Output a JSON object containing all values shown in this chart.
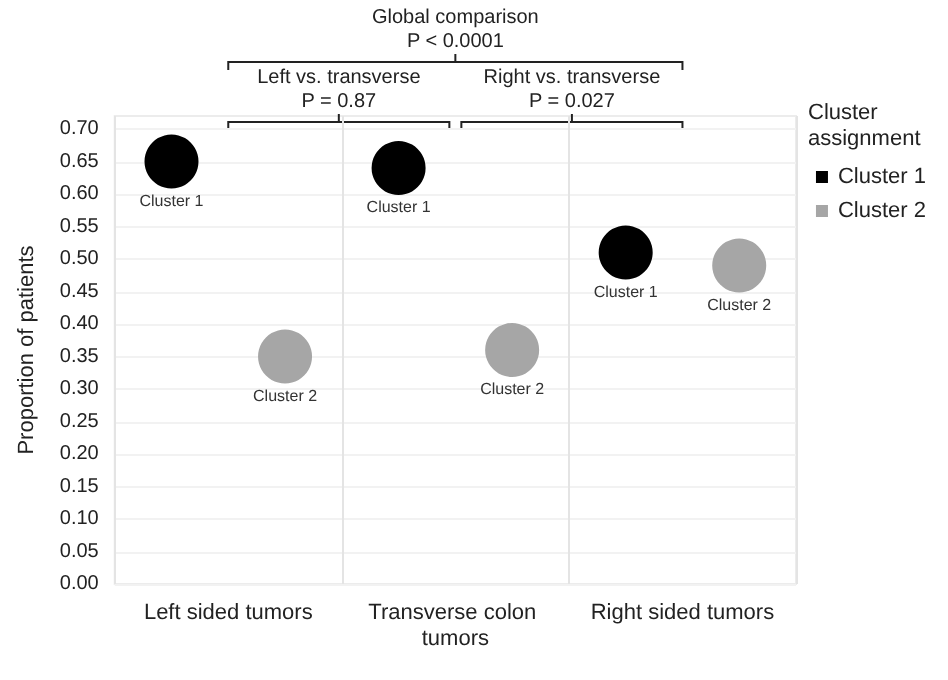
{
  "chart_data": {
    "type": "scatter",
    "ylabel": "Proportion of patients",
    "legend_title": "Cluster assignment",
    "legend": "right",
    "grid": true,
    "marker": "circle",
    "categories": [
      "Left sided tumors",
      "Transverse colon tumors",
      "Right sided tumors"
    ],
    "ylim": [
      0,
      0.72
    ],
    "yticks": [
      {
        "value": 0,
        "label": "0.00"
      },
      {
        "value": 0.05,
        "label": "0.05"
      },
      {
        "value": 0.1,
        "label": "0.10"
      },
      {
        "value": 0.15,
        "label": "0.15"
      },
      {
        "value": 0.2,
        "label": "0.20"
      },
      {
        "value": 0.25,
        "label": "0.25"
      },
      {
        "value": 0.3,
        "label": "0.30"
      },
      {
        "value": 0.35,
        "label": "0.35"
      },
      {
        "value": 0.4,
        "label": "0.40"
      },
      {
        "value": 0.45,
        "label": "0.45"
      },
      {
        "value": 0.5,
        "label": "0.50"
      },
      {
        "value": 0.55,
        "label": "0.55"
      },
      {
        "value": 0.6,
        "label": "0.60"
      },
      {
        "value": 0.65,
        "label": "0.65"
      },
      {
        "value": 0.7,
        "label": "0.70"
      }
    ],
    "series": [
      {
        "name": "Cluster 1",
        "color": "#000000",
        "values": [
          0.65,
          0.64,
          0.51
        ]
      },
      {
        "name": "Cluster 2",
        "color": "#a6a6a6",
        "values": [
          0.35,
          0.36,
          0.49
        ]
      }
    ],
    "annotations": [
      "Global comparison",
      "P < 0.0001",
      "Left vs. transverse",
      "P = 0.87",
      "Right vs. transverse",
      "P = 0.027"
    ]
  }
}
